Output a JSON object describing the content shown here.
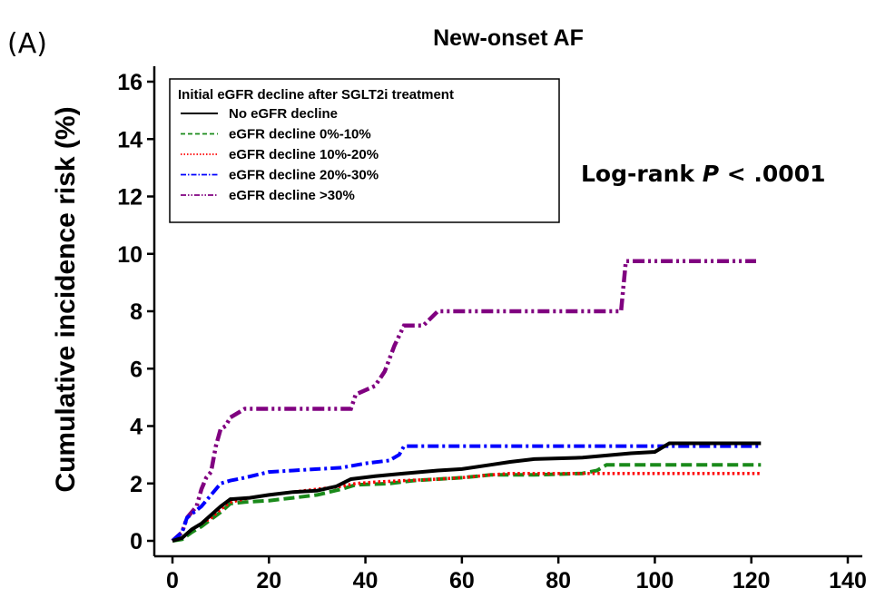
{
  "panel_label": "(A)",
  "chart_data": {
    "type": "line",
    "title": "New-onset AF",
    "ylabel": "Cumulative incidence risk (%)",
    "xlabel": "",
    "xlim": [
      0,
      140
    ],
    "ylim": [
      0,
      16
    ],
    "xticks": [
      0,
      20,
      40,
      60,
      80,
      100,
      120,
      140
    ],
    "yticks": [
      0,
      2,
      4,
      6,
      8,
      10,
      12,
      14,
      16
    ],
    "grid": false,
    "legend": {
      "title": "Initial eGFR decline after SGLT2i treatment",
      "position": "top-left"
    },
    "annotation": {
      "prefix": "Log-rank ",
      "italic": "P",
      "suffix": " < .0001"
    },
    "series": [
      {
        "name": "No eGFR decline",
        "color": "#000000",
        "dash": "solid",
        "points": [
          [
            0,
            0
          ],
          [
            2,
            0.1
          ],
          [
            4,
            0.4
          ],
          [
            6,
            0.6
          ],
          [
            8,
            0.9
          ],
          [
            10,
            1.2
          ],
          [
            12,
            1.45
          ],
          [
            16,
            1.5
          ],
          [
            20,
            1.6
          ],
          [
            25,
            1.7
          ],
          [
            30,
            1.75
          ],
          [
            34,
            1.9
          ],
          [
            37,
            2.15
          ],
          [
            42,
            2.25
          ],
          [
            48,
            2.35
          ],
          [
            55,
            2.45
          ],
          [
            60,
            2.5
          ],
          [
            66,
            2.65
          ],
          [
            70,
            2.75
          ],
          [
            75,
            2.85
          ],
          [
            85,
            2.9
          ],
          [
            95,
            3.05
          ],
          [
            100,
            3.1
          ],
          [
            103,
            3.4
          ],
          [
            122,
            3.4
          ]
        ]
      },
      {
        "name": "eGFR decline 0%-10%",
        "color": "#1a8a1a",
        "dash": "dashed",
        "points": [
          [
            0,
            0
          ],
          [
            2,
            0.05
          ],
          [
            4,
            0.3
          ],
          [
            6,
            0.5
          ],
          [
            8,
            0.75
          ],
          [
            10,
            1.0
          ],
          [
            12,
            1.3
          ],
          [
            15,
            1.35
          ],
          [
            20,
            1.4
          ],
          [
            25,
            1.5
          ],
          [
            30,
            1.6
          ],
          [
            35,
            1.8
          ],
          [
            38,
            1.95
          ],
          [
            45,
            2.0
          ],
          [
            50,
            2.1
          ],
          [
            60,
            2.2
          ],
          [
            66,
            2.3
          ],
          [
            75,
            2.3
          ],
          [
            85,
            2.35
          ],
          [
            88,
            2.45
          ],
          [
            90,
            2.65
          ],
          [
            122,
            2.65
          ]
        ]
      },
      {
        "name": "eGFR decline 10%-20%",
        "color": "#ff0000",
        "dash": "dotted",
        "points": [
          [
            0,
            0
          ],
          [
            2,
            0.1
          ],
          [
            4,
            0.4
          ],
          [
            6,
            0.6
          ],
          [
            8,
            0.8
          ],
          [
            10,
            1.1
          ],
          [
            12,
            1.35
          ],
          [
            16,
            1.5
          ],
          [
            20,
            1.6
          ],
          [
            25,
            1.7
          ],
          [
            30,
            1.8
          ],
          [
            35,
            1.9
          ],
          [
            38,
            2.0
          ],
          [
            42,
            2.05
          ],
          [
            48,
            2.1
          ],
          [
            55,
            2.15
          ],
          [
            60,
            2.2
          ],
          [
            66,
            2.3
          ],
          [
            70,
            2.35
          ],
          [
            122,
            2.35
          ]
        ]
      },
      {
        "name": "eGFR decline 20%-30%",
        "color": "#0000ff",
        "dash": "dashdot",
        "points": [
          [
            0,
            0
          ],
          [
            2,
            0.3
          ],
          [
            3,
            0.8
          ],
          [
            6,
            1.2
          ],
          [
            8,
            1.6
          ],
          [
            10,
            2.0
          ],
          [
            12,
            2.1
          ],
          [
            15,
            2.2
          ],
          [
            20,
            2.4
          ],
          [
            25,
            2.45
          ],
          [
            30,
            2.5
          ],
          [
            35,
            2.55
          ],
          [
            40,
            2.7
          ],
          [
            45,
            2.8
          ],
          [
            47,
            3.0
          ],
          [
            48,
            3.3
          ],
          [
            122,
            3.3
          ]
        ]
      },
      {
        "name": "eGFR decline >30%",
        "color": "#800080",
        "dash": "dashdotdot",
        "points": [
          [
            0,
            0
          ],
          [
            2,
            0.3
          ],
          [
            3,
            0.8
          ],
          [
            5,
            1.2
          ],
          [
            6,
            1.8
          ],
          [
            7,
            2.2
          ],
          [
            8,
            2.4
          ],
          [
            9,
            3.3
          ],
          [
            10,
            3.9
          ],
          [
            11,
            4.0
          ],
          [
            12,
            4.3
          ],
          [
            15,
            4.6
          ],
          [
            30,
            4.6
          ],
          [
            37,
            4.6
          ],
          [
            38,
            5.1
          ],
          [
            42,
            5.4
          ],
          [
            44,
            5.9
          ],
          [
            46,
            6.8
          ],
          [
            48,
            7.5
          ],
          [
            52,
            7.5
          ],
          [
            55,
            8.0
          ],
          [
            93,
            8.0
          ],
          [
            94,
            9.75
          ],
          [
            121,
            9.75
          ]
        ]
      }
    ]
  }
}
